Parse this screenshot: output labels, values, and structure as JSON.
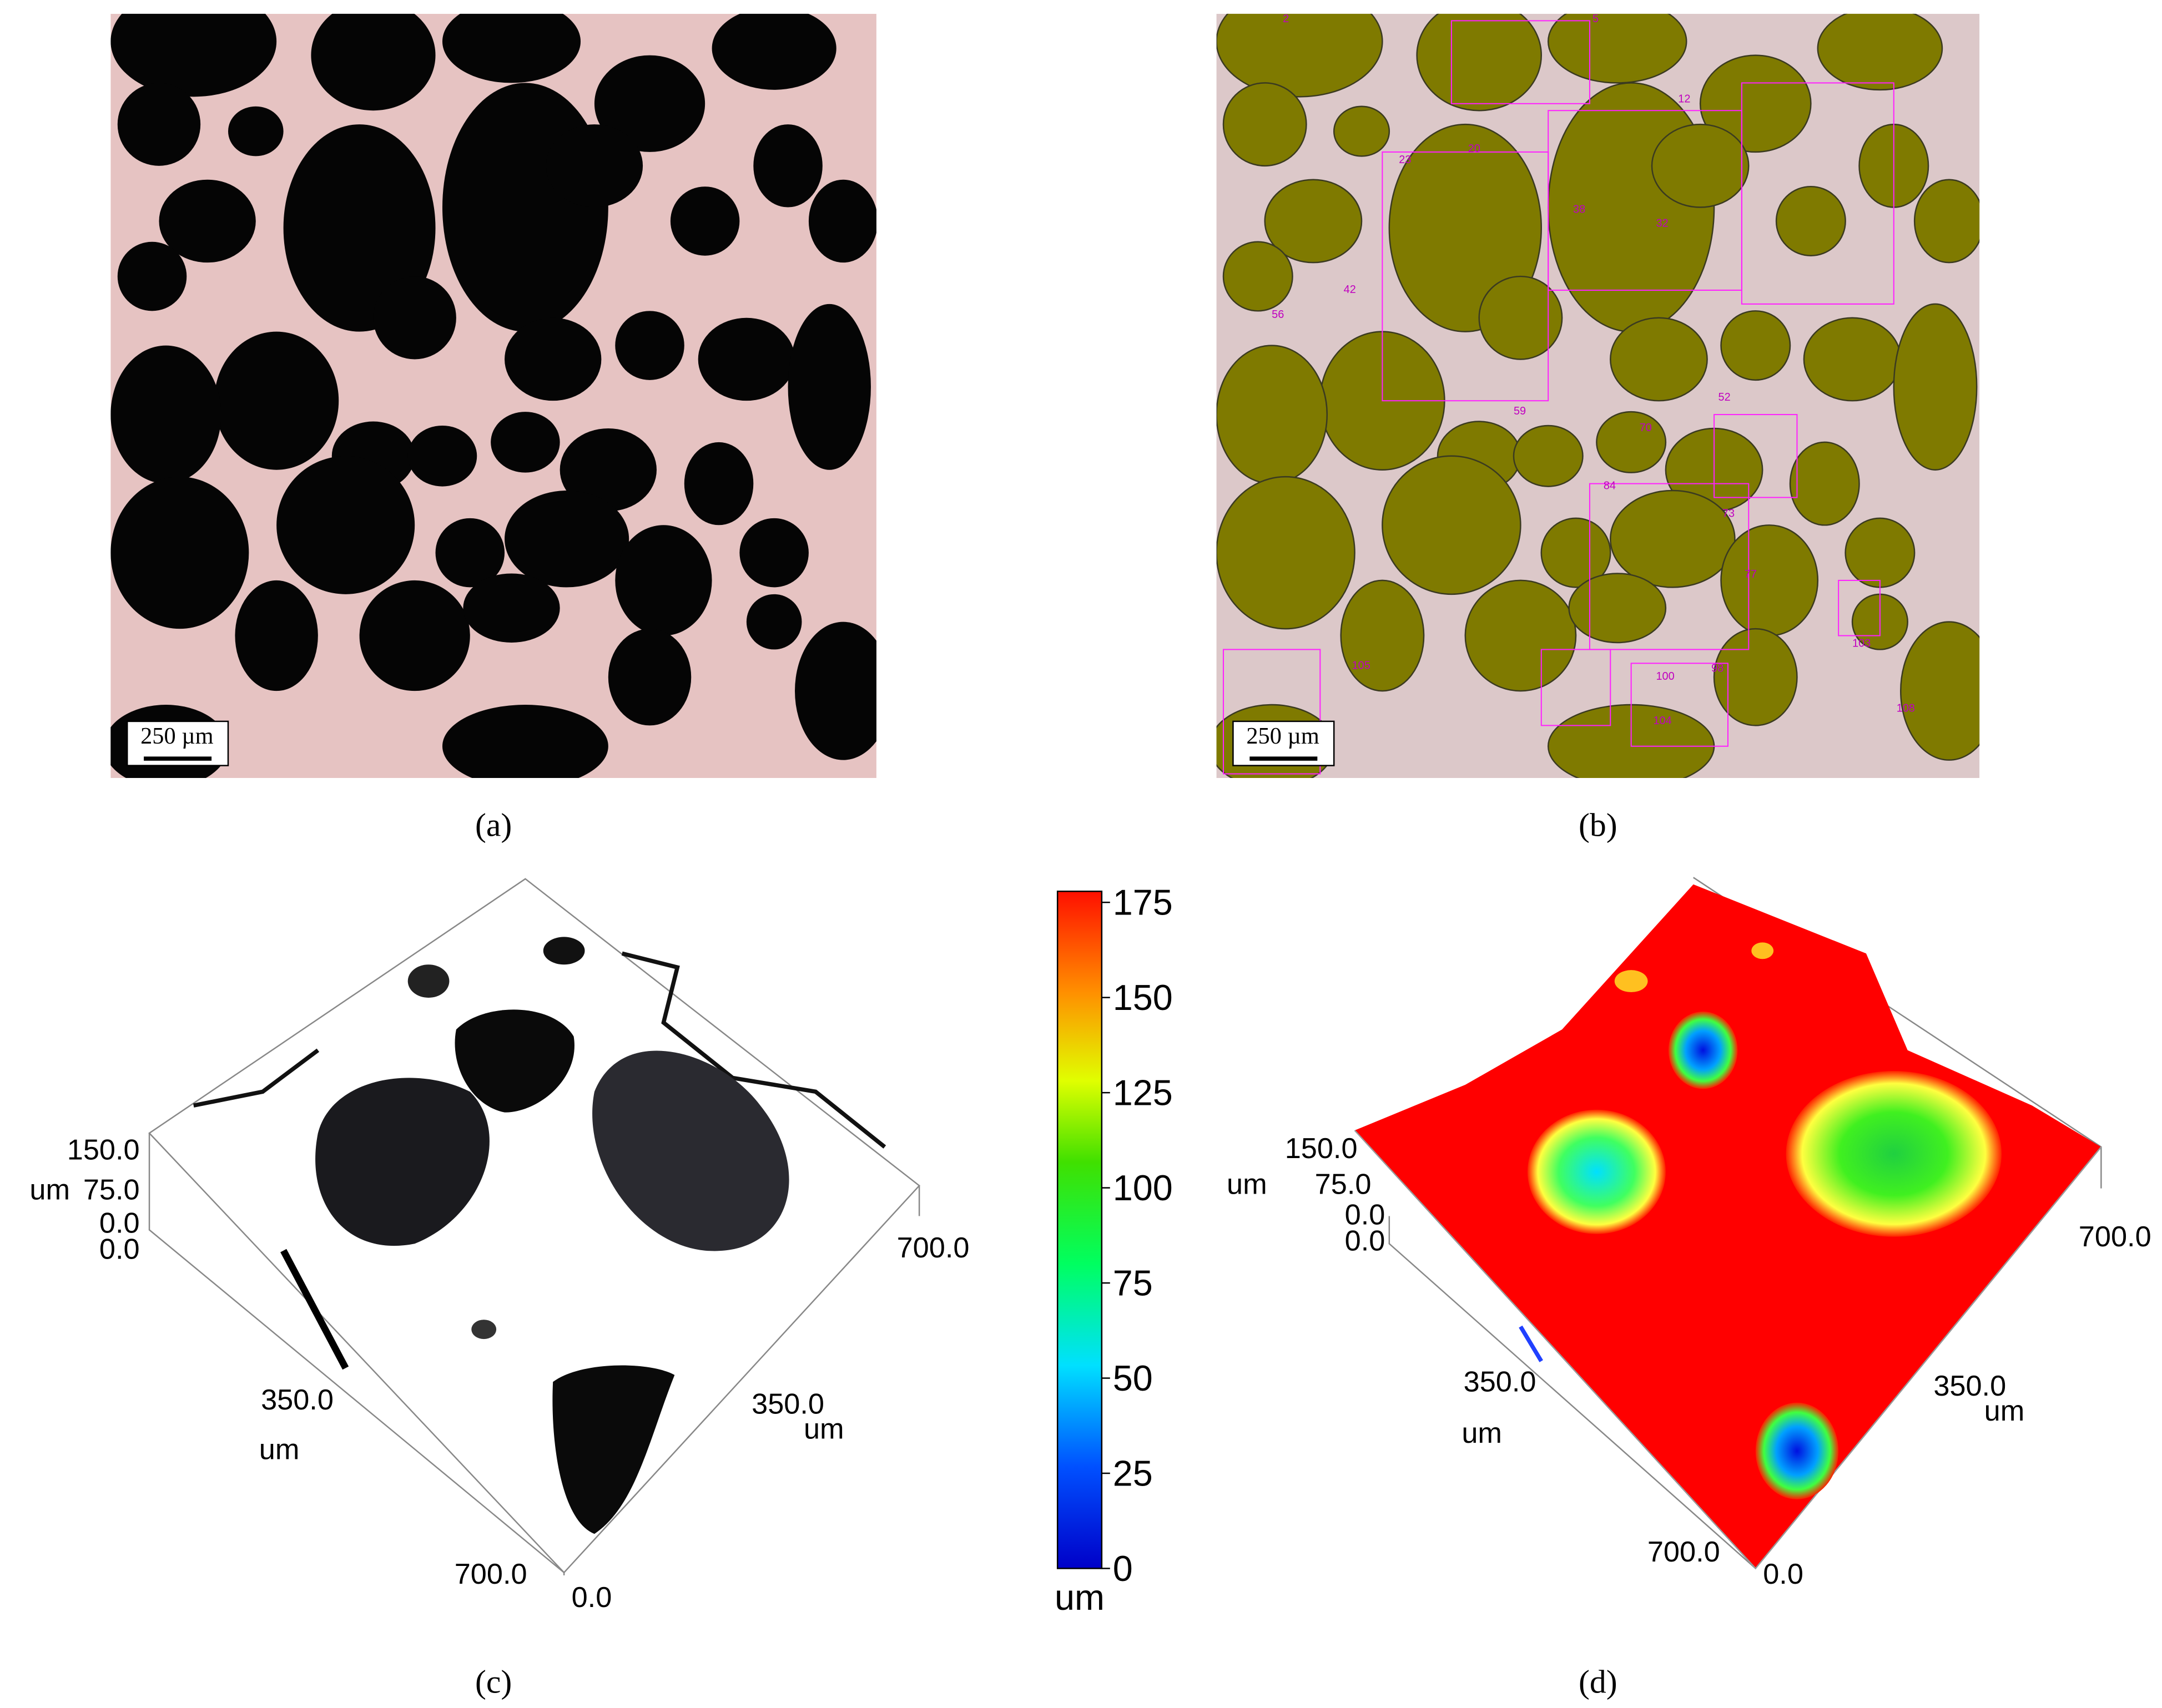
{
  "panels": {
    "a": {
      "label": "(a)",
      "scale_bar": "250 µm"
    },
    "b": {
      "label": "(b)",
      "scale_bar": "250 µm",
      "region_labels": [
        "2",
        "5",
        "12",
        "20",
        "23",
        "32",
        "38",
        "42",
        "56",
        "59",
        "52",
        "70",
        "73",
        "77",
        "84",
        "98",
        "100",
        "103",
        "104",
        "105",
        "108"
      ]
    },
    "c": {
      "label": "(c)",
      "z_ticks": [
        "150.0",
        "75.0",
        "0.0"
      ],
      "z_unit": "um",
      "y_origin": "0.0",
      "y_mid": "350.0",
      "y_unit": "um",
      "y_end": "700.0",
      "x_origin": "0.0",
      "x_mid": "350.0",
      "x_unit": "um",
      "x_end": "700.0"
    },
    "d": {
      "label": "(d)",
      "z_ticks": [
        "150.0",
        "75.0",
        "0.0"
      ],
      "z_unit": "um",
      "y_origin": "0.0",
      "y_mid": "350.0",
      "y_unit": "um",
      "y_end": "700.0",
      "x_origin": "0.0",
      "x_mid": "350.0",
      "x_unit": "um",
      "x_end": "700.0"
    }
  },
  "colorbar": {
    "range": [
      0,
      175
    ],
    "ticks": [
      0,
      25,
      50,
      75,
      100,
      125,
      150,
      175
    ],
    "unit": "um"
  }
}
